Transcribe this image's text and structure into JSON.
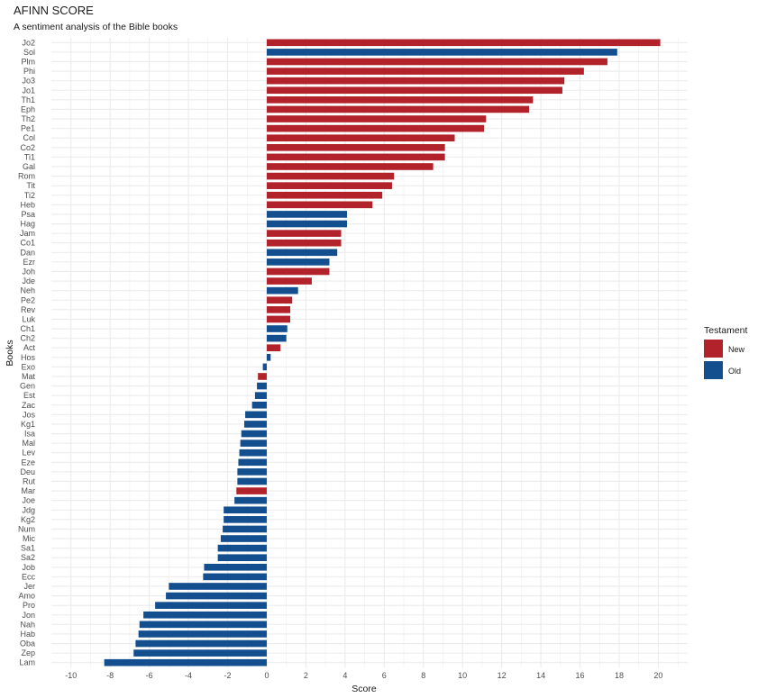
{
  "chart_data": {
    "type": "bar",
    "orientation": "horizontal",
    "title": "AFINN SCORE",
    "subtitle": "A sentiment analysis of the Bible books",
    "xlabel": "Score",
    "ylabel": "Books",
    "xlim": [
      -11,
      21.5
    ],
    "x_ticks": [
      "-10",
      "-8",
      "-6",
      "-4",
      "-2",
      "0",
      "2",
      "4",
      "6",
      "8",
      "10",
      "12",
      "14",
      "16",
      "18",
      "20"
    ],
    "grid": true,
    "legend": {
      "title": "Testament",
      "position": "right",
      "entries": [
        {
          "label": "New",
          "color": "#B2222A"
        },
        {
          "label": "Old",
          "color": "#134F8E"
        }
      ]
    },
    "bars": [
      {
        "book": "Jo2",
        "testament": "New",
        "score": 20.1
      },
      {
        "book": "Sol",
        "testament": "Old",
        "score": 17.9
      },
      {
        "book": "Plm",
        "testament": "New",
        "score": 17.4
      },
      {
        "book": "Phi",
        "testament": "New",
        "score": 16.2
      },
      {
        "book": "Jo3",
        "testament": "New",
        "score": 15.2
      },
      {
        "book": "Jo1",
        "testament": "New",
        "score": 15.1
      },
      {
        "book": "Th1",
        "testament": "New",
        "score": 13.6
      },
      {
        "book": "Eph",
        "testament": "New",
        "score": 13.4
      },
      {
        "book": "Th2",
        "testament": "New",
        "score": 11.2
      },
      {
        "book": "Pe1",
        "testament": "New",
        "score": 11.1
      },
      {
        "book": "Col",
        "testament": "New",
        "score": 9.6
      },
      {
        "book": "Co2",
        "testament": "New",
        "score": 9.1
      },
      {
        "book": "Ti1",
        "testament": "New",
        "score": 9.1
      },
      {
        "book": "Gal",
        "testament": "New",
        "score": 8.5
      },
      {
        "book": "Rom",
        "testament": "New",
        "score": 6.5
      },
      {
        "book": "Tit",
        "testament": "New",
        "score": 6.4
      },
      {
        "book": "Ti2",
        "testament": "New",
        "score": 5.9
      },
      {
        "book": "Heb",
        "testament": "New",
        "score": 5.4
      },
      {
        "book": "Psa",
        "testament": "Old",
        "score": 4.1
      },
      {
        "book": "Hag",
        "testament": "Old",
        "score": 4.1
      },
      {
        "book": "Jam",
        "testament": "New",
        "score": 3.8
      },
      {
        "book": "Co1",
        "testament": "New",
        "score": 3.8
      },
      {
        "book": "Dan",
        "testament": "Old",
        "score": 3.6
      },
      {
        "book": "Ezr",
        "testament": "Old",
        "score": 3.2
      },
      {
        "book": "Joh",
        "testament": "New",
        "score": 3.2
      },
      {
        "book": "Jde",
        "testament": "New",
        "score": 2.3
      },
      {
        "book": "Neh",
        "testament": "Old",
        "score": 1.6
      },
      {
        "book": "Pe2",
        "testament": "New",
        "score": 1.3
      },
      {
        "book": "Rev",
        "testament": "New",
        "score": 1.2
      },
      {
        "book": "Luk",
        "testament": "New",
        "score": 1.2
      },
      {
        "book": "Ch1",
        "testament": "Old",
        "score": 1.05
      },
      {
        "book": "Ch2",
        "testament": "Old",
        "score": 1.0
      },
      {
        "book": "Act",
        "testament": "New",
        "score": 0.7
      },
      {
        "book": "Hos",
        "testament": "Old",
        "score": 0.2
      },
      {
        "book": "Exo",
        "testament": "Old",
        "score": -0.2
      },
      {
        "book": "Mat",
        "testament": "New",
        "score": -0.45
      },
      {
        "book": "Gen",
        "testament": "Old",
        "score": -0.5
      },
      {
        "book": "Est",
        "testament": "Old",
        "score": -0.6
      },
      {
        "book": "Zac",
        "testament": "Old",
        "score": -0.75
      },
      {
        "book": "Jos",
        "testament": "Old",
        "score": -1.1
      },
      {
        "book": "Kg1",
        "testament": "Old",
        "score": -1.15
      },
      {
        "book": "Isa",
        "testament": "Old",
        "score": -1.3
      },
      {
        "book": "Mal",
        "testament": "Old",
        "score": -1.35
      },
      {
        "book": "Lev",
        "testament": "Old",
        "score": -1.4
      },
      {
        "book": "Eze",
        "testament": "Old",
        "score": -1.45
      },
      {
        "book": "Deu",
        "testament": "Old",
        "score": -1.5
      },
      {
        "book": "Rut",
        "testament": "Old",
        "score": -1.5
      },
      {
        "book": "Mar",
        "testament": "New",
        "score": -1.55
      },
      {
        "book": "Joe",
        "testament": "Old",
        "score": -1.65
      },
      {
        "book": "Jdg",
        "testament": "Old",
        "score": -2.2
      },
      {
        "book": "Kg2",
        "testament": "Old",
        "score": -2.2
      },
      {
        "book": "Num",
        "testament": "Old",
        "score": -2.25
      },
      {
        "book": "Mic",
        "testament": "Old",
        "score": -2.35
      },
      {
        "book": "Sa1",
        "testament": "Old",
        "score": -2.5
      },
      {
        "book": "Sa2",
        "testament": "Old",
        "score": -2.5
      },
      {
        "book": "Job",
        "testament": "Old",
        "score": -3.2
      },
      {
        "book": "Ecc",
        "testament": "Old",
        "score": -3.25
      },
      {
        "book": "Jer",
        "testament": "Old",
        "score": -5.0
      },
      {
        "book": "Amo",
        "testament": "Old",
        "score": -5.15
      },
      {
        "book": "Pro",
        "testament": "Old",
        "score": -5.7
      },
      {
        "book": "Jon",
        "testament": "Old",
        "score": -6.3
      },
      {
        "book": "Nah",
        "testament": "Old",
        "score": -6.5
      },
      {
        "book": "Hab",
        "testament": "Old",
        "score": -6.55
      },
      {
        "book": "Oba",
        "testament": "Old",
        "score": -6.7
      },
      {
        "book": "Zep",
        "testament": "Old",
        "score": -6.8
      },
      {
        "book": "Lam",
        "testament": "Old",
        "score": -8.3
      }
    ]
  }
}
